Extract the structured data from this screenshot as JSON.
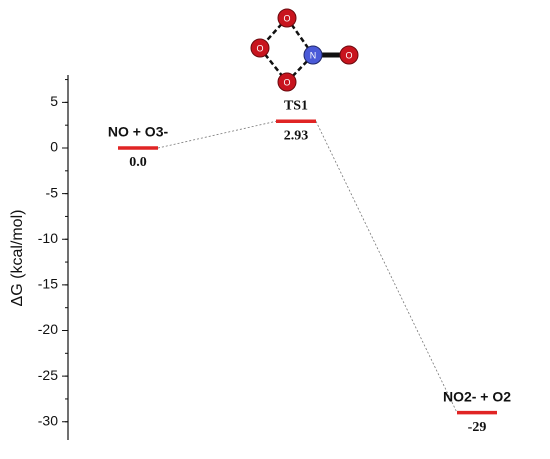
{
  "chart_data": {
    "type": "energy-diagram",
    "y_label": "ΔG (kcal/mol)",
    "categories": [
      "NO + O3-",
      "TS1",
      "NO2- + O2"
    ],
    "values": [
      0.0,
      2.93,
      -29
    ],
    "value_labels": [
      "0.0",
      "2.93",
      "-29"
    ],
    "color": "#e02424",
    "ylim": [
      -32,
      8
    ],
    "yticks": [
      -30,
      -25,
      -20,
      -15,
      -10,
      -5,
      0,
      5
    ],
    "minor_tick_step": 2.5,
    "ts_structure": {
      "atoms": [
        "O",
        "O",
        "O",
        "N",
        "O"
      ]
    }
  }
}
